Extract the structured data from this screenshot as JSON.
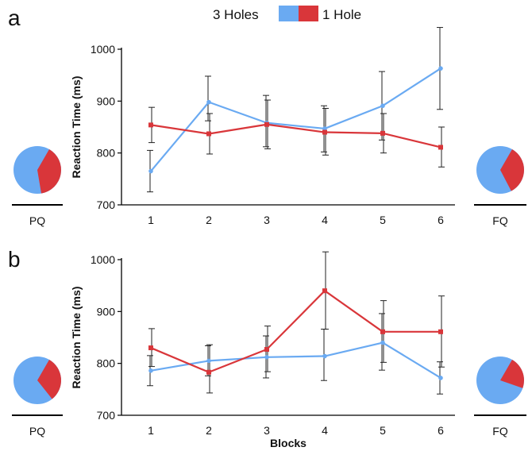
{
  "legend": {
    "items": [
      {
        "label": "3 Holes",
        "color": "#6aaaf2"
      },
      {
        "label": "1 Hole",
        "color": "#d9363a"
      }
    ]
  },
  "colors": {
    "blue": "#6aaaf2",
    "red": "#d9363a",
    "axis": "#000000",
    "errorbar": "#222222"
  },
  "chart_data": [
    {
      "panel": "a",
      "type": "line",
      "ylabel": "Reaction Time (ms)",
      "xlabel": "",
      "categories": [
        "1",
        "2",
        "3",
        "4",
        "5",
        "6"
      ],
      "ylim": [
        700,
        1000
      ],
      "yticks": [
        700,
        800,
        900,
        1000
      ],
      "grid": false,
      "series": [
        {
          "name": "3 Holes",
          "color": "#6aaaf2",
          "marker": "circle",
          "values": [
            765,
            898,
            858,
            847,
            891,
            963
          ],
          "err_low": [
            725,
            862,
            812,
            802,
            825,
            884
          ],
          "err_high": [
            805,
            948,
            911,
            891,
            957,
            1042
          ]
        },
        {
          "name": "1 Hole",
          "color": "#d9363a",
          "marker": "square",
          "values": [
            854,
            837,
            855,
            840,
            838,
            811
          ],
          "err_low": [
            820,
            798,
            808,
            796,
            800,
            773
          ],
          "err_high": [
            888,
            876,
            902,
            886,
            876,
            850
          ]
        }
      ],
      "pies": [
        {
          "label": "PQ",
          "blue_fraction": 0.61,
          "red_fraction": 0.39
        },
        {
          "label": "FQ",
          "blue_fraction": 0.66,
          "red_fraction": 0.34
        }
      ]
    },
    {
      "panel": "b",
      "type": "line",
      "ylabel": "Reaction Time (ms)",
      "xlabel": "Blocks",
      "categories": [
        "1",
        "2",
        "3",
        "4",
        "5",
        "6"
      ],
      "ylim": [
        700,
        1000
      ],
      "yticks": [
        700,
        800,
        900,
        1000
      ],
      "grid": false,
      "series": [
        {
          "name": "3 Holes",
          "color": "#6aaaf2",
          "marker": "circle",
          "values": [
            786,
            805,
            812,
            814,
            840,
            772
          ],
          "err_low": [
            757,
            776,
            772,
            767,
            787,
            741
          ],
          "err_high": [
            815,
            834,
            853,
            866,
            896,
            803
          ]
        },
        {
          "name": "1 Hole",
          "color": "#d9363a",
          "marker": "square",
          "values": [
            830,
            783,
            827,
            940,
            861,
            861
          ],
          "err_low": [
            794,
            743,
            784,
            866,
            802,
            793
          ],
          "err_high": [
            867,
            836,
            872,
            1015,
            921,
            930
          ]
        }
      ],
      "pies": [
        {
          "label": "PQ",
          "blue_fraction": 0.69,
          "red_fraction": 0.31
        },
        {
          "label": "FQ",
          "blue_fraction": 0.78,
          "red_fraction": 0.22
        }
      ]
    }
  ]
}
